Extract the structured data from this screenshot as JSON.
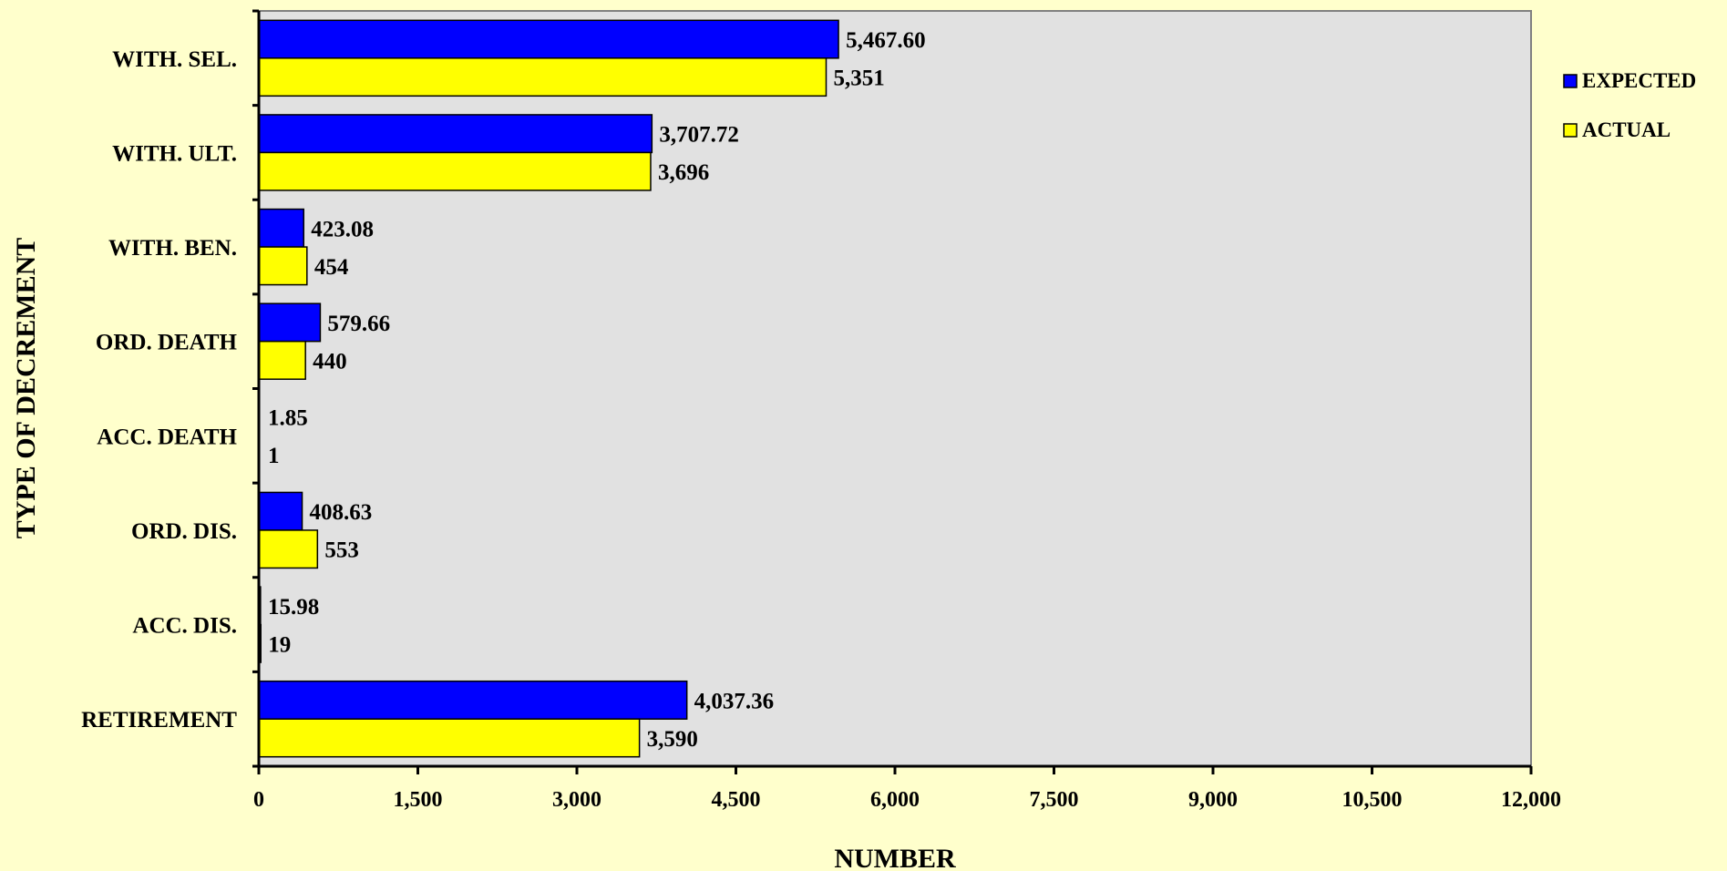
{
  "chart_data": {
    "type": "bar",
    "orientation": "horizontal",
    "title": "",
    "xlabel": "NUMBER",
    "ylabel": "TYPE OF DECREMENT",
    "xlim": [
      0,
      12000
    ],
    "xticks": [
      0,
      1500,
      3000,
      4500,
      6000,
      7500,
      9000,
      10500,
      12000
    ],
    "xtick_labels": [
      "0",
      "1,500",
      "3,000",
      "4,500",
      "6,000",
      "7,500",
      "9,000",
      "10,500",
      "12,000"
    ],
    "categories": [
      "WITH. SEL.",
      "WITH. ULT.",
      "WITH. BEN.",
      "ORD. DEATH",
      "ACC. DEATH",
      "ORD. DIS.",
      "ACC. DIS.",
      "RETIREMENT"
    ],
    "series": [
      {
        "name": "EXPECTED",
        "color": "#0000ff",
        "values": [
          5467.6,
          3707.72,
          423.08,
          579.66,
          1.85,
          408.63,
          15.98,
          4037.36
        ],
        "labels": [
          "5,467.60",
          "3,707.72",
          "423.08",
          "579.66",
          "1.85",
          "408.63",
          "15.98",
          "4,037.36"
        ]
      },
      {
        "name": "ACTUAL",
        "color": "#ffff00",
        "values": [
          5351,
          3696,
          454,
          440,
          1,
          553,
          19,
          3590
        ],
        "labels": [
          "5,351",
          "3,696",
          "454",
          "440",
          "1",
          "553",
          "19",
          "3,590"
        ]
      }
    ],
    "legend_position": "right",
    "grid": false,
    "plot_background": "#e1e1e1",
    "page_background": "#ffffcc"
  }
}
